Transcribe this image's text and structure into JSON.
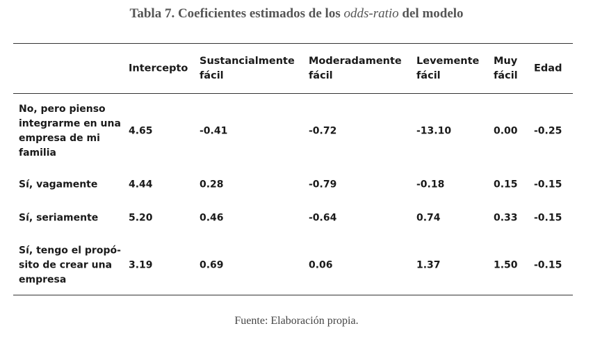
{
  "table": {
    "title_bold_1": "Tabla 7.  Coeficientes estimados de los ",
    "title_italic": "odds-ratio",
    "title_bold_2": " del modelo",
    "columns": [
      [
        "Intercepto"
      ],
      [
        "Sustancialmente",
        "fácil"
      ],
      [
        "Moderadamente",
        "fácil"
      ],
      [
        "Levemente",
        "fácil"
      ],
      [
        "Muy",
        "fácil"
      ],
      [
        "Edad"
      ]
    ],
    "rows": [
      {
        "label": [
          "No, pero pienso",
          "integrarme en una",
          "empresa de mi",
          "familia"
        ],
        "values": [
          "4.65",
          "-0.41",
          "-0.72",
          "-13.10",
          "0.00",
          "-0.25"
        ]
      },
      {
        "label": [
          "Sí, vagamente"
        ],
        "values": [
          "4.44",
          "0.28",
          "-0.79",
          "-0.18",
          "0.15",
          "-0.15"
        ]
      },
      {
        "label": [
          "Sí, seriamente"
        ],
        "values": [
          "5.20",
          "0.46",
          "-0.64",
          "0.74",
          "0.33",
          "-0.15"
        ]
      },
      {
        "label": [
          "Sí, tengo el propó-",
          "sito de crear una",
          "empresa"
        ],
        "values": [
          "3.19",
          "0.69",
          "0.06",
          "1.37",
          "1.50",
          "-0.15"
        ]
      }
    ],
    "source": "Fuente: Elaboración propia."
  }
}
